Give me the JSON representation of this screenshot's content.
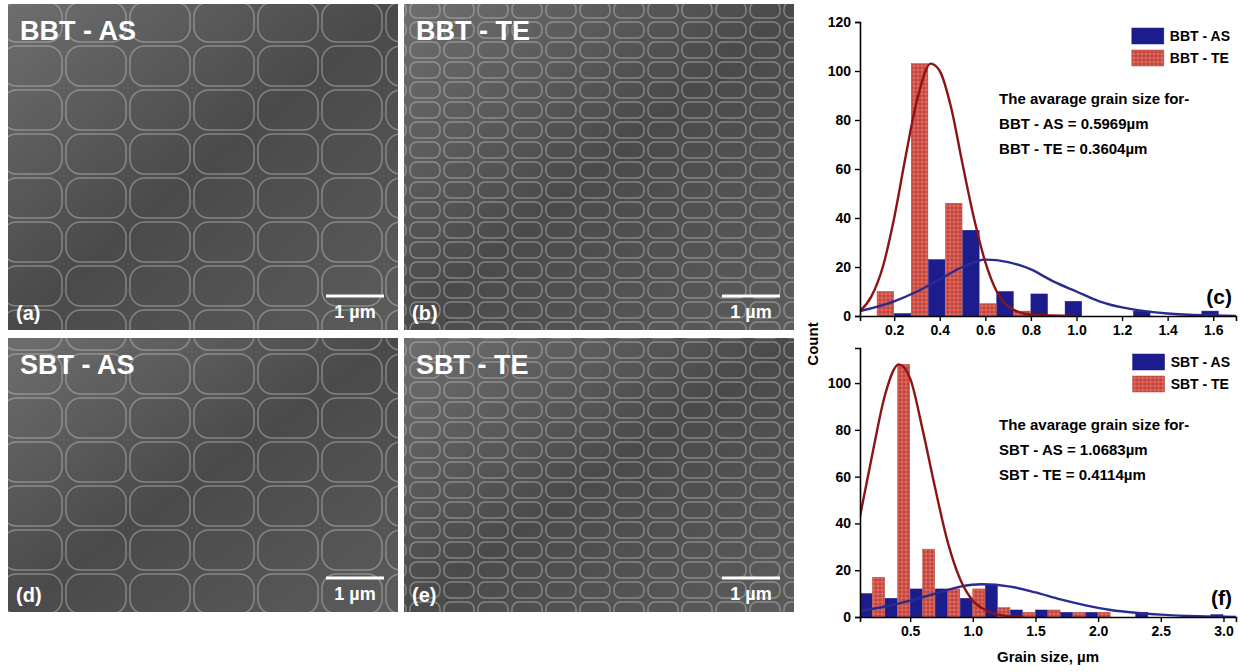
{
  "chart_data": [
    {
      "type": "histogram",
      "panel_label": "(c)",
      "y_label": "Count",
      "annotation": [
        "The avarage grain size for-",
        "BBT - AS = 0.5969µm",
        "BBT - TE = 0.3604µm"
      ],
      "bins": [
        0.05,
        0.2,
        0.35,
        0.5,
        0.65,
        0.8,
        0.95,
        1.1,
        1.25,
        1.4,
        1.55,
        1.7
      ],
      "series": [
        {
          "name": "BBT - AS",
          "color": "#1c1c8c",
          "values": [
            0,
            1,
            23,
            35,
            10,
            9,
            6,
            0,
            2,
            0,
            2
          ]
        },
        {
          "name": "BBT - TE",
          "color": "#b0473f",
          "values": [
            10,
            103,
            46,
            5,
            2,
            0,
            0,
            0,
            0,
            0,
            0
          ]
        }
      ],
      "fits": [
        {
          "color": "#2b2b8f",
          "x": [
            0.05,
            0.2,
            0.3,
            0.4,
            0.5,
            0.6,
            0.7,
            0.8,
            0.9,
            1.0,
            1.1,
            1.2,
            1.3,
            1.4,
            1.6,
            1.7
          ],
          "values": [
            2,
            6,
            10,
            15,
            20,
            23,
            22,
            19,
            14,
            10,
            6,
            3.5,
            2,
            1,
            0.2,
            0
          ]
        },
        {
          "color": "#8b1515",
          "x": [
            0.05,
            0.1,
            0.15,
            0.2,
            0.25,
            0.3,
            0.36,
            0.4,
            0.45,
            0.5,
            0.55,
            0.6,
            0.65,
            0.7,
            0.8,
            1.0
          ],
          "values": [
            2,
            8,
            20,
            40,
            65,
            88,
            103,
            100,
            85,
            62,
            40,
            22,
            10,
            4,
            0.5,
            0
          ]
        }
      ],
      "xlim": [
        0.05,
        1.7
      ],
      "xticks": [
        0.2,
        0.4,
        0.6,
        0.8,
        1.2,
        1.4,
        1.6,
        {
          "value": 1,
          "label": "1.0"
        }
      ],
      "ylim": [
        0,
        120
      ],
      "yticks": [
        0,
        20,
        40,
        60,
        80,
        100,
        120
      ],
      "legend": "upper right"
    },
    {
      "type": "histogram",
      "panel_label": "(f)",
      "x_label": "Grain size, µm",
      "annotation": [
        "The avarage grain size for-",
        "SBT - AS = 1.0683µm",
        "SBT - TE = 0.4114µm"
      ],
      "bins": [
        0.1,
        0.3,
        0.5,
        0.7,
        0.9,
        1.1,
        1.3,
        1.5,
        1.7,
        1.9,
        2.1,
        2.3,
        2.5,
        2.7,
        2.9,
        3.1
      ],
      "series": [
        {
          "name": "SBT - AS",
          "color": "#1c1c8c",
          "values": [
            10,
            8,
            12,
            12,
            8,
            14,
            3,
            3,
            2,
            2,
            0,
            2,
            0,
            0,
            1
          ]
        },
        {
          "name": "SBT - TE",
          "color": "#b0473f",
          "values": [
            17,
            108,
            29,
            12,
            12,
            4,
            2,
            3,
            2,
            2,
            0,
            0,
            0,
            0,
            0
          ]
        }
      ],
      "fits": [
        {
          "color": "#2b2b8f",
          "x": [
            0.1,
            0.3,
            0.5,
            0.7,
            0.9,
            1.07,
            1.3,
            1.5,
            1.7,
            1.9,
            2.1,
            2.3,
            2.5,
            2.8,
            3.1
          ],
          "values": [
            2.5,
            4.5,
            7,
            10,
            13,
            14,
            13,
            10.5,
            7.5,
            5,
            3,
            1.8,
            1,
            0.3,
            0
          ]
        },
        {
          "color": "#8b1515",
          "x": [
            0.1,
            0.2,
            0.3,
            0.41,
            0.5,
            0.6,
            0.7,
            0.8,
            0.9,
            1.0,
            1.1,
            1.2,
            1.4
          ],
          "values": [
            43,
            70,
            95,
            108,
            102,
            80,
            55,
            32,
            16,
            7,
            3,
            1,
            0
          ]
        }
      ],
      "xlim": [
        0.1,
        3.1
      ],
      "xticks": [
        0.5,
        {
          "value": 1,
          "label": "1.0"
        },
        1.5,
        {
          "value": 2,
          "label": "2.0"
        },
        2.5,
        {
          "value": 3,
          "label": "3.0"
        }
      ],
      "ylim": [
        0,
        115
      ],
      "yticks": [
        0,
        20,
        40,
        60,
        80,
        100
      ],
      "legend": "upper right"
    }
  ],
  "images": [
    {
      "title": "BBT - AS",
      "label": "(a)",
      "scale_bar": "1 µm"
    },
    {
      "title": "BBT - TE",
      "label": "(b)",
      "scale_bar": "1 µm"
    },
    {
      "title": "SBT - AS",
      "label": "(d)",
      "scale_bar": "1 µm"
    },
    {
      "title": "SBT - TE",
      "label": "(e)",
      "scale_bar": "1 µm"
    }
  ]
}
